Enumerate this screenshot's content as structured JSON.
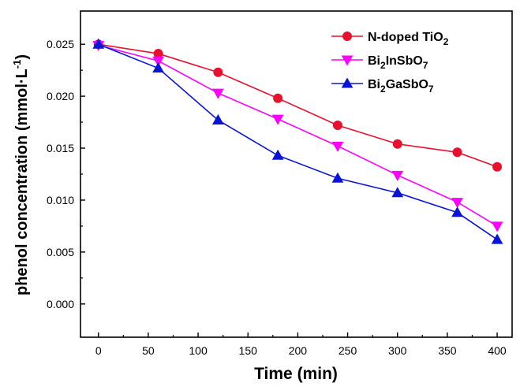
{
  "chart_data": {
    "type": "line",
    "title": "",
    "xlabel": "Time (min)",
    "ylabel": "phenol concentration (mmol·L",
    "ylabel_sup": "-1",
    "ylabel_close": ")",
    "xlim": [
      -18,
      415
    ],
    "ylim": [
      -0.0032,
      0.0282
    ],
    "x_ticks": [
      0,
      50,
      100,
      150,
      200,
      250,
      300,
      350,
      400
    ],
    "y_ticks": [
      0.0,
      0.005,
      0.01,
      0.015,
      0.02,
      0.025
    ],
    "y_tick_labels": [
      "0.000",
      "0.005",
      "0.010",
      "0.015",
      "0.020",
      "0.025"
    ],
    "grid": false,
    "legend_position": "top-right",
    "x": [
      0,
      60,
      120,
      180,
      240,
      300,
      360,
      400
    ],
    "series": [
      {
        "name": "N-doped TiO2",
        "label_parts": [
          {
            "text": "N-doped TiO",
            "sub": false
          },
          {
            "text": "2",
            "sub": true
          }
        ],
        "color": "#e8112d",
        "marker": "circle",
        "values": [
          0.025,
          0.0241,
          0.0223,
          0.0198,
          0.0172,
          0.0154,
          0.0146,
          0.0132
        ]
      },
      {
        "name": "Bi2InSbO7",
        "label_parts": [
          {
            "text": "Bi",
            "sub": false
          },
          {
            "text": "2",
            "sub": true
          },
          {
            "text": "InSbO",
            "sub": false
          },
          {
            "text": "7",
            "sub": true
          }
        ],
        "color": "#ff00ff",
        "marker": "triangle-down",
        "values": [
          0.0249,
          0.0234,
          0.0203,
          0.0178,
          0.0152,
          0.0124,
          0.0098,
          0.0075
        ]
      },
      {
        "name": "Bi2GaSbO7",
        "label_parts": [
          {
            "text": "Bi",
            "sub": false
          },
          {
            "text": "2",
            "sub": true
          },
          {
            "text": "GaSbO",
            "sub": false
          },
          {
            "text": "7",
            "sub": true
          }
        ],
        "color": "#0a14d6",
        "marker": "triangle-up",
        "values": [
          0.025,
          0.0227,
          0.0177,
          0.0143,
          0.0121,
          0.0107,
          0.0088,
          0.0062
        ]
      }
    ]
  }
}
